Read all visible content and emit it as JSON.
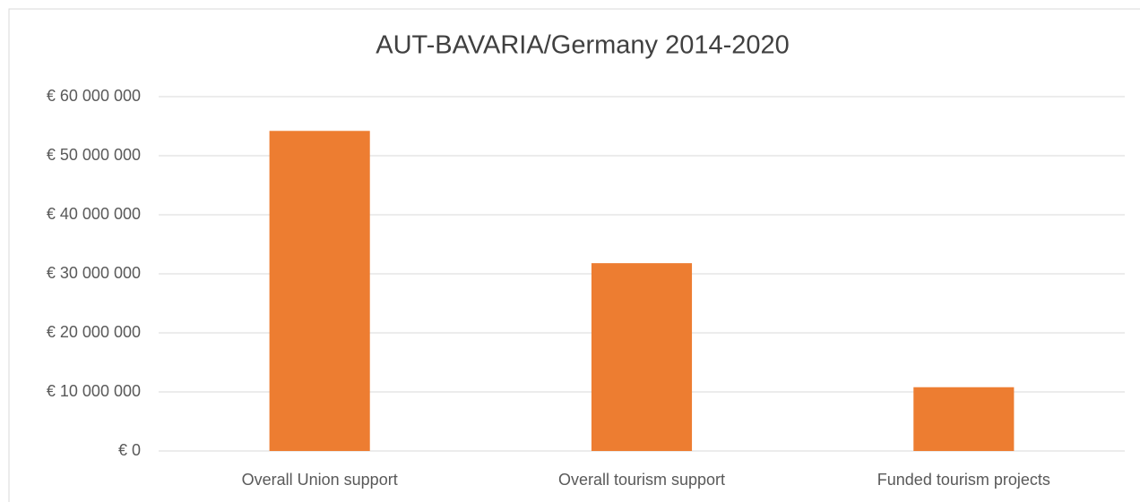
{
  "chart_data": {
    "type": "bar",
    "title": "AUT-BAVARIA/Germany 2014-2020",
    "categories": [
      "Overall Union support",
      "Overall tourism support",
      "Funded tourism projects"
    ],
    "values": [
      54200000,
      31800000,
      10800000
    ],
    "color": "#ed7d31",
    "ylim": [
      0,
      60000000
    ],
    "yticks": [
      {
        "value": 0,
        "label": "€ 0"
      },
      {
        "value": 10000000,
        "label": "€ 10 000 000"
      },
      {
        "value": 20000000,
        "label": "€ 20 000 000"
      },
      {
        "value": 30000000,
        "label": "€ 30 000 000"
      },
      {
        "value": 40000000,
        "label": "€ 40 000 000"
      },
      {
        "value": 50000000,
        "label": "€ 50 000 000"
      },
      {
        "value": 60000000,
        "label": "€ 60 000 000"
      }
    ],
    "grid": true
  }
}
